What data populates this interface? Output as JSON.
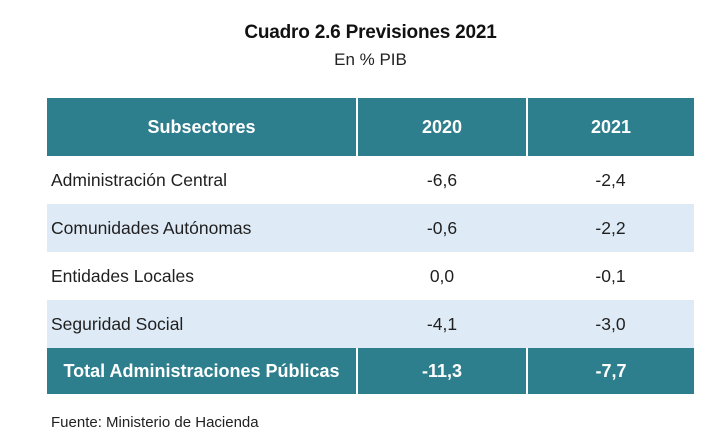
{
  "title": "Cuadro 2.6 Previsiones 2021",
  "subtitle": "En % PIB",
  "table": {
    "headers": [
      "Subsectores",
      "2020",
      "2021"
    ],
    "rows": [
      {
        "label": "Administración Central",
        "v2020": "-6,6",
        "v2021": "-2,4"
      },
      {
        "label": "Comunidades Autónomas",
        "v2020": "-0,6",
        "v2021": "-2,2"
      },
      {
        "label": "Entidades Locales",
        "v2020": "0,0",
        "v2021": "-0,1"
      },
      {
        "label": "Seguridad Social",
        "v2020": "-4,1",
        "v2021": "-3,0"
      }
    ],
    "total": {
      "label": "Total Administraciones Públicas",
      "v2020": "-11,3",
      "v2021": "-7,7"
    }
  },
  "source": "Fuente: Ministerio de Hacienda",
  "colors": {
    "header_bg": "#2e7f8e",
    "row_shade": "#deebf6"
  }
}
